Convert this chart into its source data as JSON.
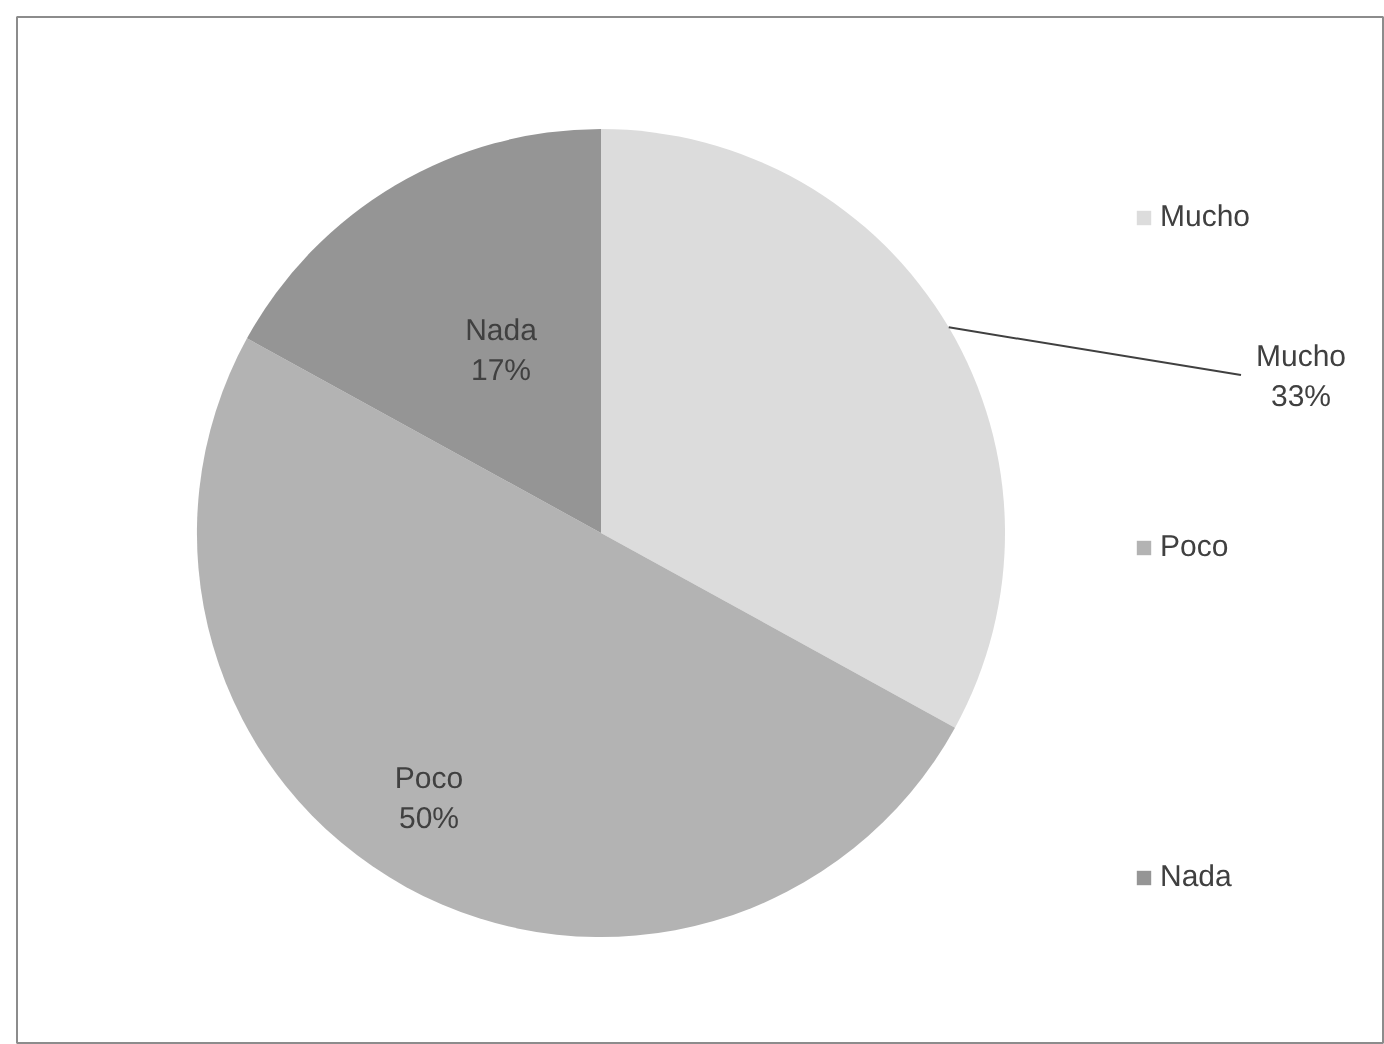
{
  "chart_data": {
    "type": "pie",
    "categories": [
      "Mucho",
      "Poco",
      "Nada"
    ],
    "values": [
      33,
      50,
      17
    ],
    "colors": [
      "#dcdcdc",
      "#b3b3b3",
      "#959595"
    ],
    "value_labels": [
      "33%",
      "50%",
      "17%"
    ],
    "legend": "right"
  }
}
